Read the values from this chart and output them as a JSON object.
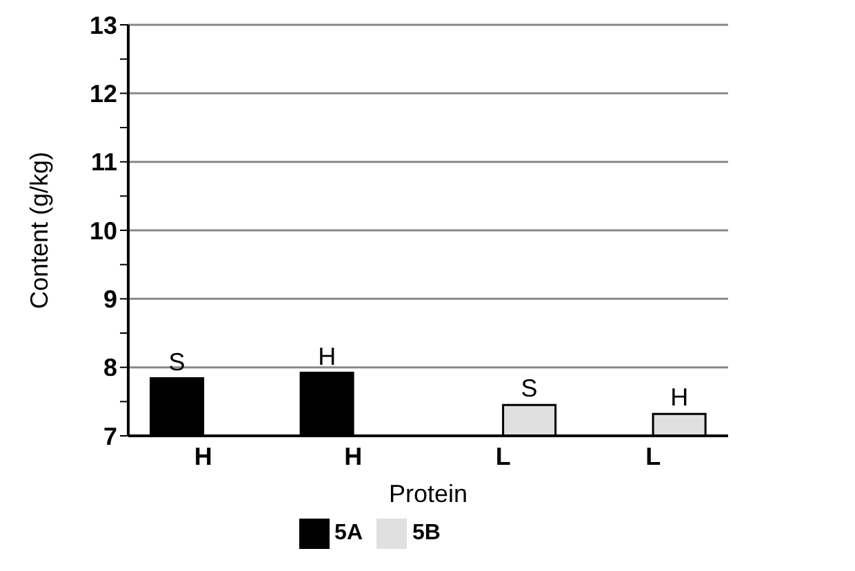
{
  "chart_data": {
    "type": "bar",
    "xlabel": "Protein",
    "ylabel": "Content (g/kg)",
    "categories": [
      "H",
      "H",
      "L",
      "L"
    ],
    "series": [
      {
        "name": "5A",
        "color": "#000000",
        "values": [
          7.84,
          7.92,
          null,
          null
        ],
        "value_labels": [
          "S",
          "H",
          null,
          null
        ]
      },
      {
        "name": "5B",
        "color": "#e0e0e0",
        "values": [
          null,
          null,
          7.45,
          7.32
        ],
        "value_labels": [
          null,
          null,
          "S",
          "H"
        ]
      }
    ],
    "ylim": [
      7,
      13
    ],
    "yticks": [
      7,
      {
        "value": 7.5,
        "label": null
      },
      8,
      {
        "value": 8.5,
        "label": null
      },
      9,
      {
        "value": 9.5,
        "label": null
      },
      10,
      {
        "value": 10.5,
        "label": null
      },
      11,
      {
        "value": 11.5,
        "label": null
      },
      12,
      {
        "value": 12.5,
        "label": null
      },
      13
    ],
    "grid": "y",
    "legend": "bottom"
  }
}
